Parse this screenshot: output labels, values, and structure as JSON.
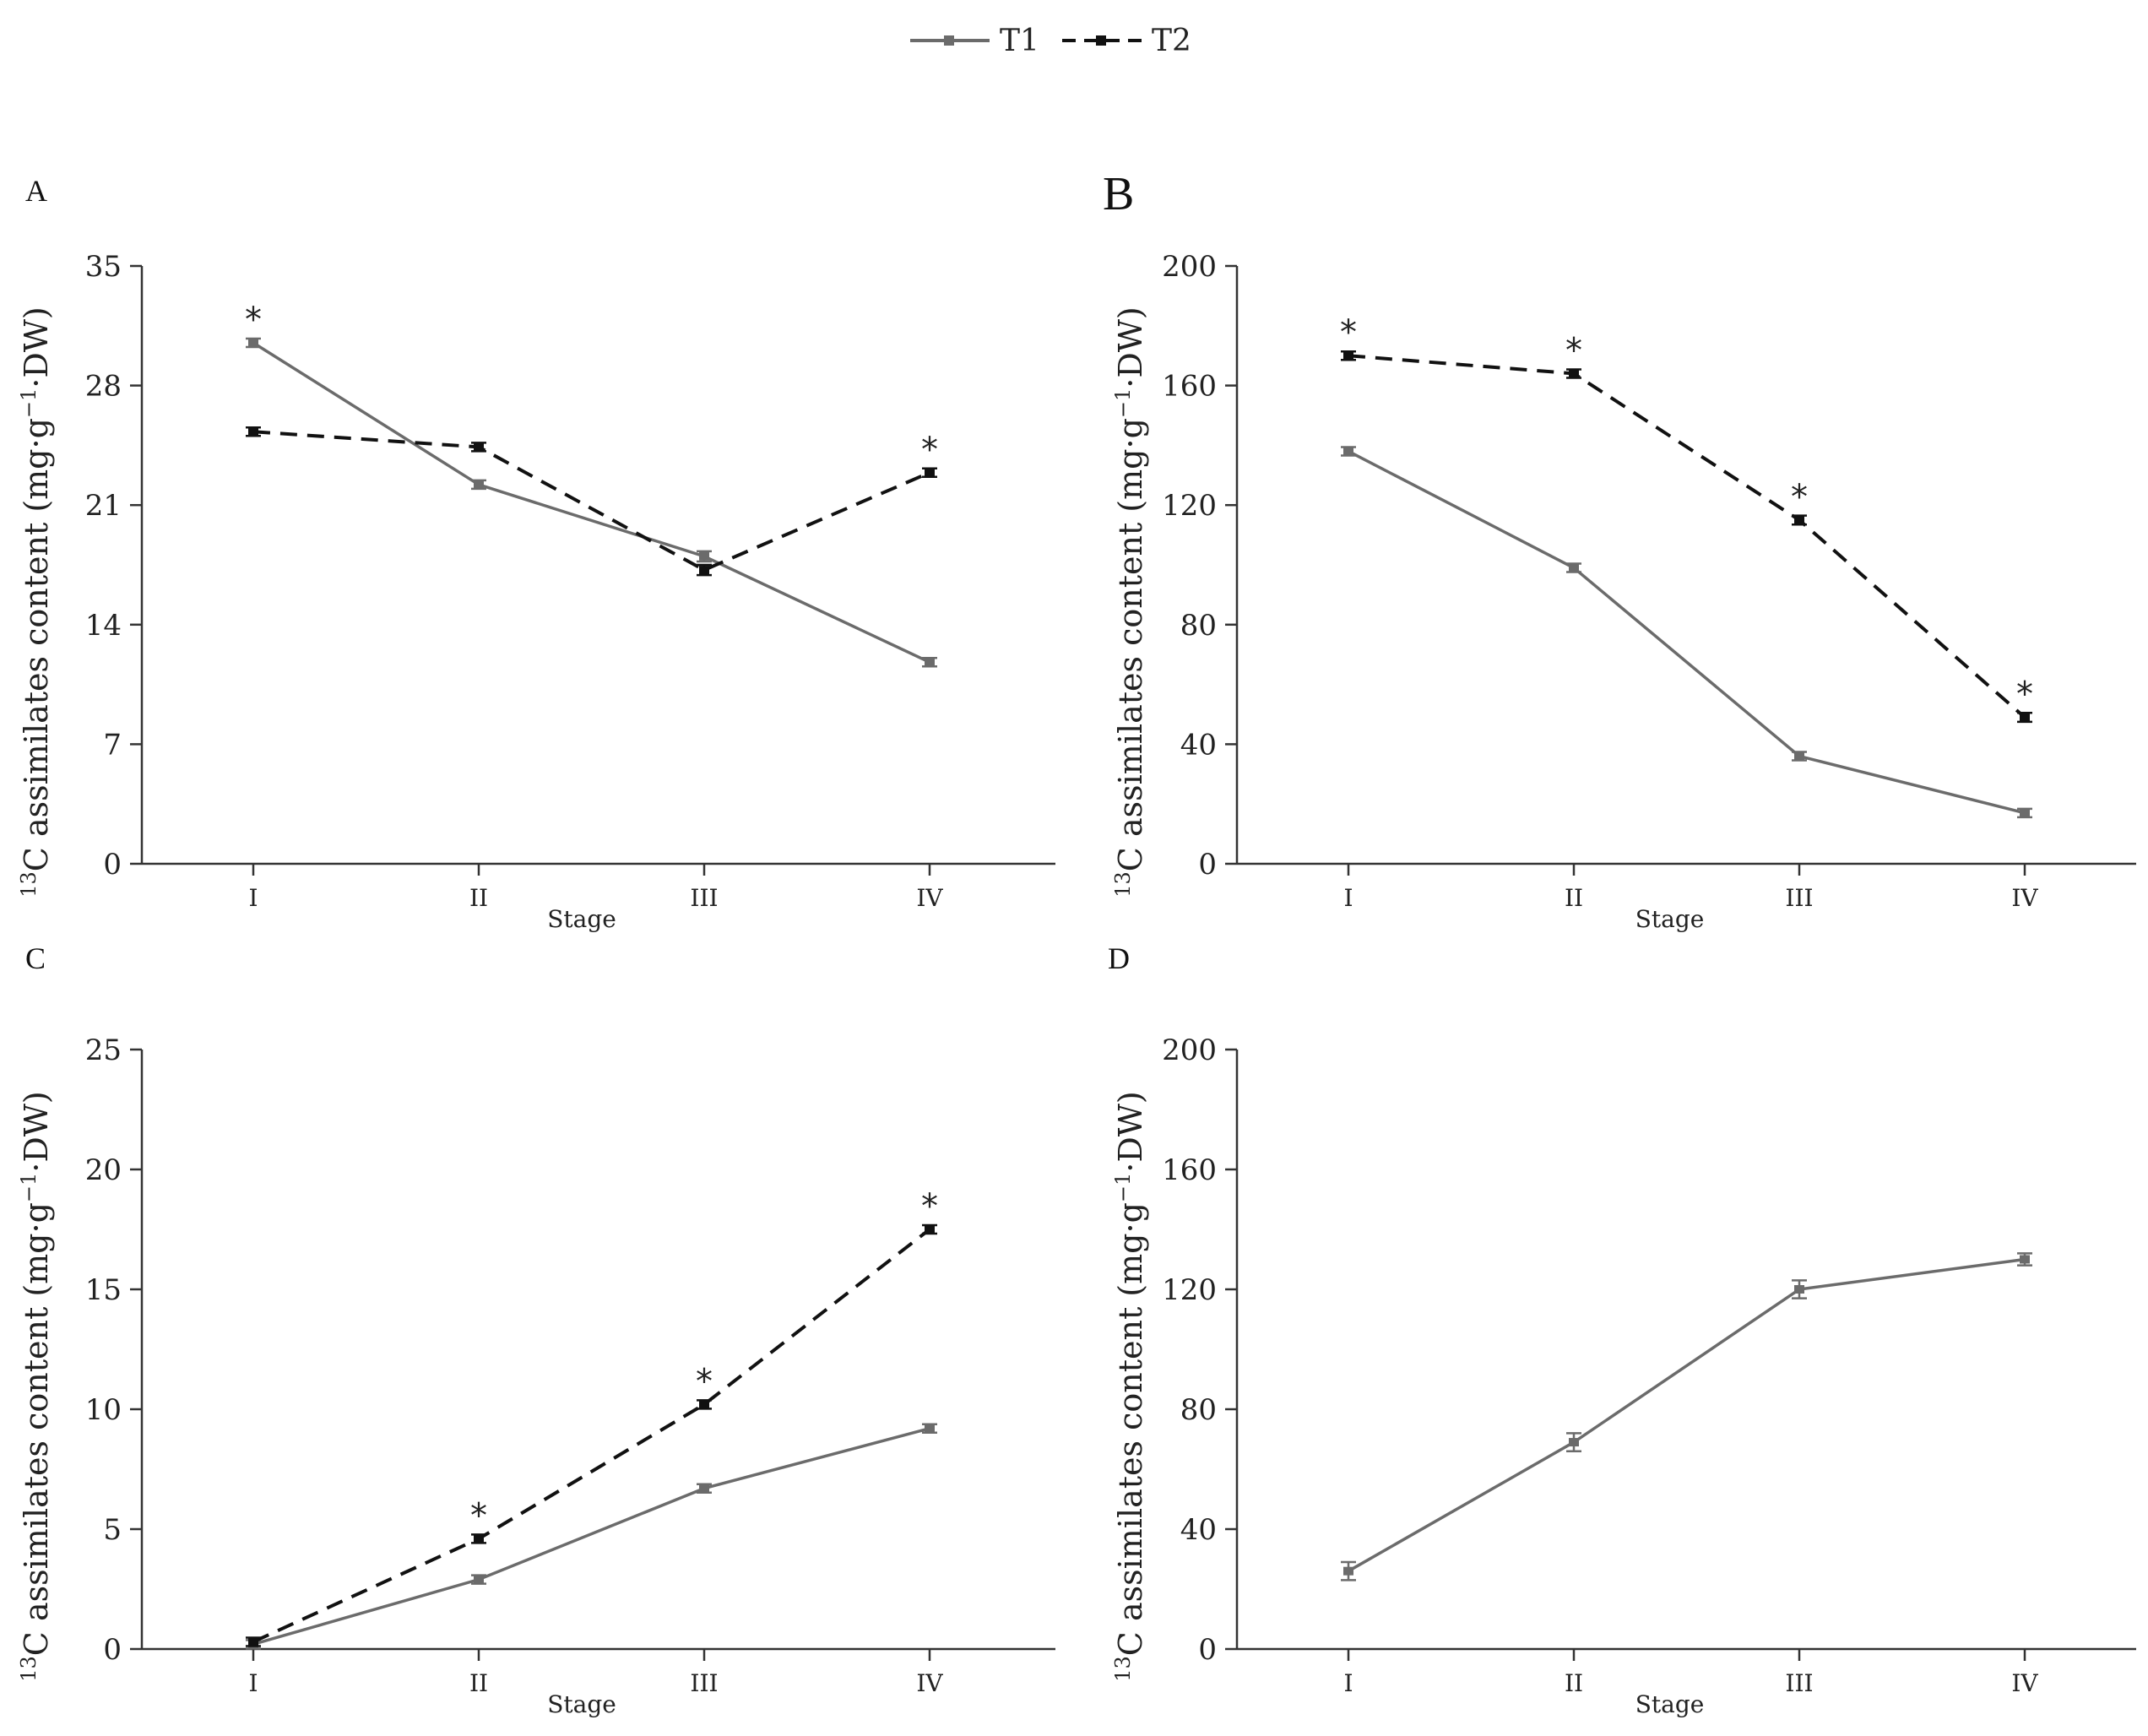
{
  "legend": {
    "series": [
      {
        "name": "T1",
        "color": "#6b6b6b",
        "dash": "solid"
      },
      {
        "name": "T2",
        "color": "#111111",
        "dash": "dashed"
      }
    ]
  },
  "colors": {
    "t1": "#6b6b6b",
    "t2": "#111111",
    "axis": "#333333"
  },
  "chart_data": [
    {
      "panel": "A",
      "type": "line",
      "categories": [
        "I",
        "II",
        "III",
        "IV"
      ],
      "xlabel": "Stage",
      "ylabel_sup": "13",
      "ylabel_main": "C assimilates content (mg·g",
      "ylabel_exp": "−1",
      "ylabel_tail": "·DW)",
      "ylim": [
        0,
        35
      ],
      "yticks": [
        "0",
        "7",
        "14",
        "21",
        "28",
        "35"
      ],
      "series": [
        {
          "name": "T1",
          "values": [
            30.5,
            22.2,
            18.0,
            11.8
          ],
          "err": [
            0.2,
            0.2,
            0.3,
            0.2
          ],
          "stars": [
            true,
            false,
            false,
            false
          ]
        },
        {
          "name": "T2",
          "values": [
            25.3,
            24.4,
            17.2,
            22.9
          ],
          "err": [
            0.2,
            0.2,
            0.3,
            0.2
          ],
          "stars": [
            false,
            false,
            false,
            true
          ]
        }
      ]
    },
    {
      "panel": "B",
      "type": "line",
      "categories": [
        "I",
        "II",
        "III",
        "IV"
      ],
      "xlabel": "Stage",
      "ylabel_sup": "13",
      "ylabel_main": "C assimilates content (mg·g",
      "ylabel_exp": "−1",
      "ylabel_tail": "·DW)",
      "ylim": [
        0,
        200
      ],
      "yticks": [
        "0",
        "40",
        "80",
        "120",
        "160",
        "200"
      ],
      "series": [
        {
          "name": "T1",
          "values": [
            138,
            99,
            36,
            17
          ],
          "err": [
            1,
            1,
            1,
            1
          ],
          "stars": [
            false,
            false,
            false,
            false
          ]
        },
        {
          "name": "T2",
          "values": [
            170,
            164,
            115,
            49
          ],
          "err": [
            1,
            1,
            1.5,
            1.5
          ],
          "stars": [
            true,
            true,
            true,
            true
          ]
        }
      ]
    },
    {
      "panel": "C",
      "type": "line",
      "categories": [
        "I",
        "II",
        "III",
        "IV"
      ],
      "xlabel": "Stage",
      "ylabel_sup": "13",
      "ylabel_main": "C assimilates content (mg·g",
      "ylabel_exp": "−1",
      "ylabel_tail": "·DW)",
      "ylim": [
        0,
        25
      ],
      "yticks": [
        "0",
        "5",
        "10",
        "15",
        "20",
        "25"
      ],
      "series": [
        {
          "name": "T1",
          "values": [
            0.2,
            2.9,
            6.7,
            9.2
          ],
          "err": [
            0.1,
            0.1,
            0.1,
            0.1
          ],
          "stars": [
            false,
            false,
            false,
            false
          ]
        },
        {
          "name": "T2",
          "values": [
            0.3,
            4.6,
            10.2,
            17.5
          ],
          "err": [
            0.1,
            0.15,
            0.15,
            0.15
          ],
          "stars": [
            false,
            true,
            true,
            true
          ]
        }
      ]
    },
    {
      "panel": "D",
      "type": "line",
      "categories": [
        "I",
        "II",
        "III",
        "IV"
      ],
      "xlabel": "Stage",
      "ylabel_sup": "13",
      "ylabel_main": "C assimilates content (mg·g",
      "ylabel_exp": "−1",
      "ylabel_tail": "·DW)",
      "ylim": [
        0,
        200
      ],
      "yticks": [
        "0",
        "40",
        "80",
        "120",
        "160",
        "200"
      ],
      "series": [
        {
          "name": "T1",
          "values": [
            26,
            69,
            120,
            130
          ],
          "err": [
            3,
            3,
            3,
            2
          ],
          "stars": [
            false,
            false,
            false,
            false
          ]
        }
      ]
    }
  ]
}
